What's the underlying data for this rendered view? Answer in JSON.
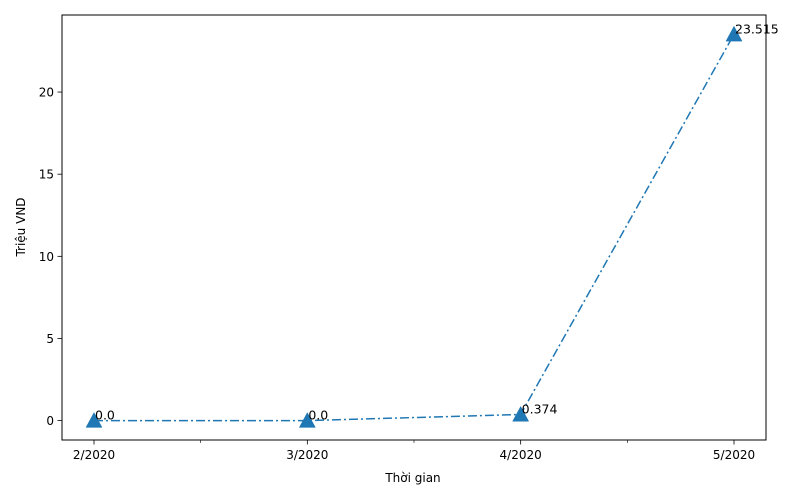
{
  "chart_data": {
    "type": "line",
    "title": "",
    "xlabel": "Thời gian",
    "ylabel": "Triệu VND",
    "categories": [
      "2/2020",
      "3/2020",
      "4/2020",
      "5/2020"
    ],
    "series": [
      {
        "values": [
          0.0,
          0.0,
          0.374,
          23.515
        ],
        "labels": [
          "0.0",
          "0.0",
          "0.374",
          "23.515"
        ],
        "color": "#1f77b4",
        "line_style": "dash-dot",
        "marker": "triangle-up"
      }
    ],
    "yticks": [
      0,
      5,
      10,
      15,
      20
    ],
    "ylim": [
      -1.18,
      24.69
    ],
    "grid": false,
    "legend": "none"
  }
}
